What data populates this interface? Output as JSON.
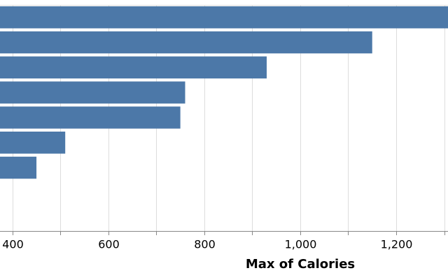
{
  "chart_data": {
    "type": "bar",
    "orientation": "horizontal",
    "values": [
      1310,
      1150,
      930,
      760,
      750,
      510,
      450
    ],
    "color": "#4c78a8",
    "x_label": "Max of Calories",
    "xlim": [
      374,
      1308
    ],
    "xticks": [
      400,
      600,
      800,
      {
        "value": 1000,
        "label": "1,000"
      },
      {
        "value": 1200,
        "label": "1,200"
      }
    ],
    "minor_xticks": [
      500,
      700,
      900,
      1100,
      1300
    ],
    "grid": true
  }
}
